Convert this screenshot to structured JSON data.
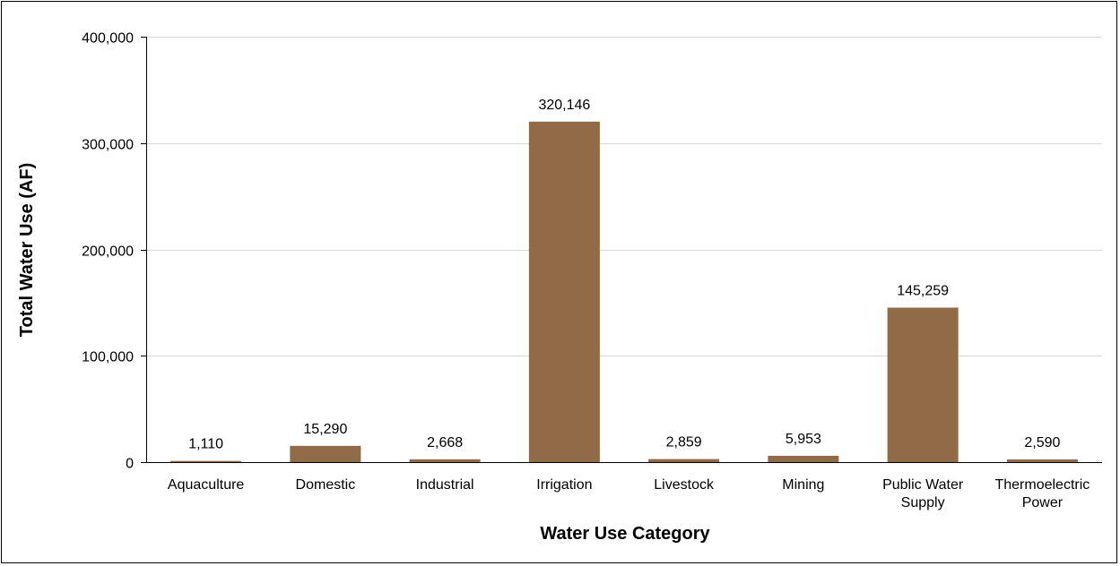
{
  "chart_data": {
    "type": "bar",
    "title": "",
    "xlabel": "Water Use Category",
    "ylabel": "Total Water Use (AF)",
    "ylim": [
      0,
      400000
    ],
    "yticks": [
      0,
      100000,
      200000,
      300000,
      400000
    ],
    "ytick_labels": [
      "0",
      "100,000",
      "200,000",
      "300,000",
      "400,000"
    ],
    "grid": true,
    "legend": "none",
    "categories": [
      [
        "Aquaculture"
      ],
      [
        "Domestic"
      ],
      [
        "Industrial"
      ],
      [
        "Irrigation"
      ],
      [
        "Livestock"
      ],
      [
        "Mining"
      ],
      [
        "Public Water",
        "Supply"
      ],
      [
        "Thermoelectric",
        "Power"
      ]
    ],
    "values": [
      1110,
      15290,
      2668,
      320146,
      2859,
      5953,
      145259,
      2590
    ],
    "value_labels": [
      "1,110",
      "15,290",
      "2,668",
      "320,146",
      "2,859",
      "5,953",
      "145,259",
      "2,590"
    ],
    "colors": {
      "bar": "#916A48",
      "grid": "#D9D9D9",
      "axis": "#000000"
    }
  }
}
